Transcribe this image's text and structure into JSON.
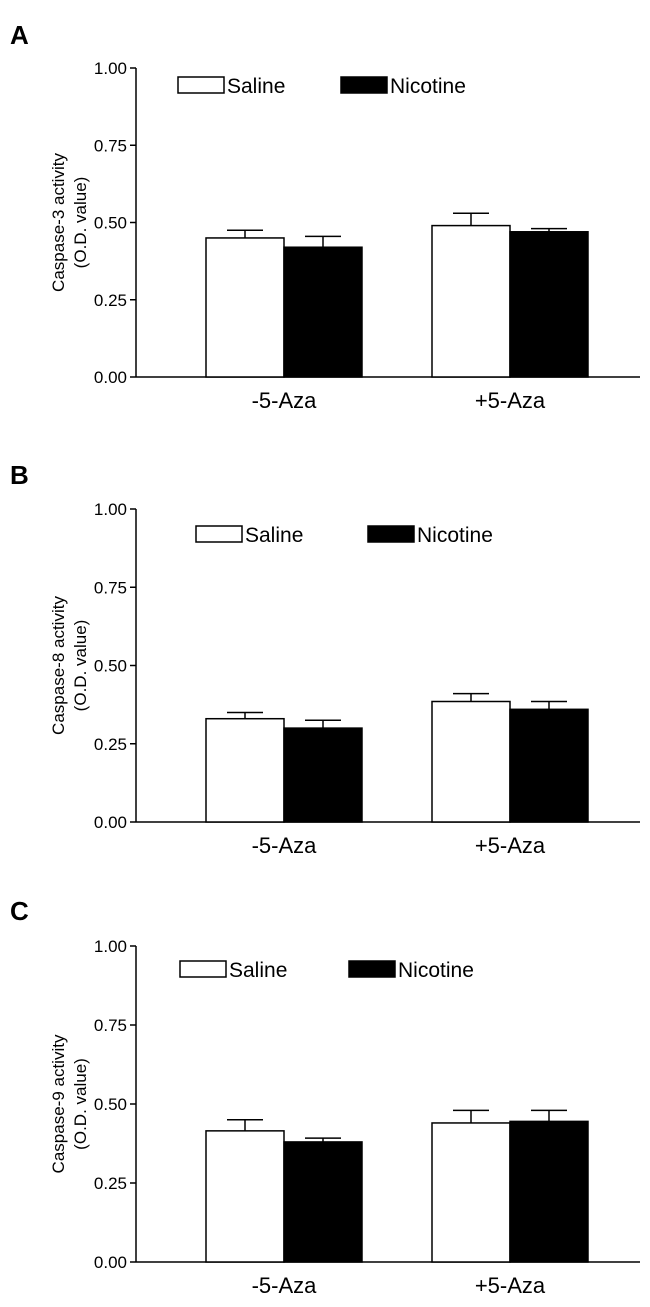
{
  "colors": {
    "saline_fill": "#ffffff",
    "nicotine_fill": "#000000",
    "stroke": "#000000"
  },
  "chart_data": [
    {
      "panel_label": "A",
      "type": "bar",
      "categories": [
        "-5-Aza",
        "+5-Aza"
      ],
      "series": [
        {
          "name": "Saline",
          "values": [
            0.45,
            0.49
          ],
          "errors": [
            0.025,
            0.04
          ]
        },
        {
          "name": "Nicotine",
          "values": [
            0.42,
            0.47
          ],
          "errors": [
            0.035,
            0.01
          ]
        }
      ],
      "ylabel_line1": "Caspase-3 activity",
      "ylabel_line2": "(O.D. value)",
      "ylim": [
        0,
        1.0
      ],
      "yticks": [
        "0.00",
        "0.25",
        "0.50",
        "0.75",
        "1.00"
      ],
      "legend": "top-left, horizontal",
      "grid": false
    },
    {
      "panel_label": "B",
      "type": "bar",
      "categories": [
        "-5-Aza",
        "+5-Aza"
      ],
      "series": [
        {
          "name": "Saline",
          "values": [
            0.33,
            0.385
          ],
          "errors": [
            0.02,
            0.025
          ]
        },
        {
          "name": "Nicotine",
          "values": [
            0.3,
            0.36
          ],
          "errors": [
            0.025,
            0.025
          ]
        }
      ],
      "ylabel_line1": "Caspase-8 activity",
      "ylabel_line2": "(O.D. value)",
      "ylim": [
        0,
        1.0
      ],
      "yticks": [
        "0.00",
        "0.25",
        "0.50",
        "0.75",
        "1.00"
      ],
      "legend": "top-left, horizontal",
      "grid": false
    },
    {
      "panel_label": "C",
      "type": "bar",
      "categories": [
        "-5-Aza",
        "+5-Aza"
      ],
      "series": [
        {
          "name": "Saline",
          "values": [
            0.415,
            0.44
          ],
          "errors": [
            0.035,
            0.04
          ]
        },
        {
          "name": "Nicotine",
          "values": [
            0.38,
            0.445
          ],
          "errors": [
            0.012,
            0.035
          ]
        }
      ],
      "ylabel_line1": "Caspase-9 activity",
      "ylabel_line2": "(O.D. value)",
      "ylim": [
        0,
        1.0
      ],
      "yticks": [
        "0.00",
        "0.25",
        "0.50",
        "0.75",
        "1.00"
      ],
      "legend": "top-left, horizontal",
      "grid": false
    }
  ]
}
